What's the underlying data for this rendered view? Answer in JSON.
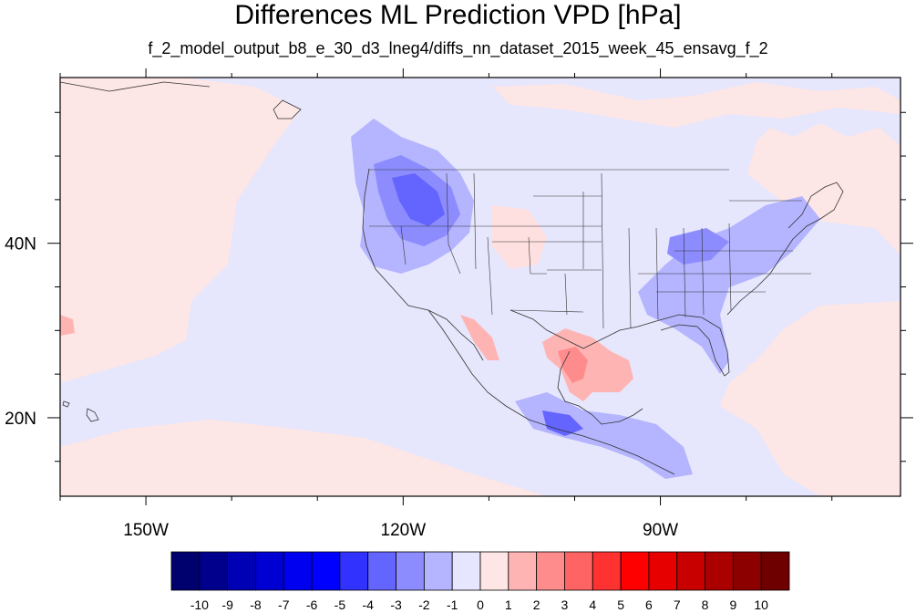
{
  "title": "Differences ML Prediction VPD [hPa]",
  "subtitle": "f_2_model_output_b8_e_30_d3_lneg4/diffs_nn_dataset_2015_week_45_ensavg_f_2",
  "map": {
    "lon_range": [
      -160,
      -62
    ],
    "lat_range": [
      11,
      59
    ],
    "x_tick_labels": [
      {
        "lon": -150,
        "label": "150W"
      },
      {
        "lon": -120,
        "label": "120W"
      },
      {
        "lon": -90,
        "label": "90W"
      }
    ],
    "y_tick_labels": [
      {
        "lat": 40,
        "label": "40N"
      },
      {
        "lat": 20,
        "label": "20N"
      }
    ],
    "background_color": "#fde6e6",
    "land_color": "#e6e6fc"
  },
  "colorbar": {
    "labels": [
      "-10",
      "-9",
      "-8",
      "-7",
      "-6",
      "-5",
      "-4",
      "-3",
      "-2",
      "-1",
      "0",
      "1",
      "2",
      "3",
      "4",
      "5",
      "6",
      "7",
      "8",
      "9",
      "10"
    ],
    "colors": [
      "#00006e",
      "#00008c",
      "#0000b4",
      "#0000d2",
      "#0000f0",
      "#0000ff",
      "#3232ff",
      "#6464ff",
      "#8c8cff",
      "#b4b4ff",
      "#e6e6ff",
      "#ffe6e6",
      "#ffb4b4",
      "#ff8c8c",
      "#ff6464",
      "#ff3232",
      "#ff0000",
      "#e60000",
      "#c80000",
      "#aa0000",
      "#8c0000",
      "#6e0000"
    ]
  }
}
